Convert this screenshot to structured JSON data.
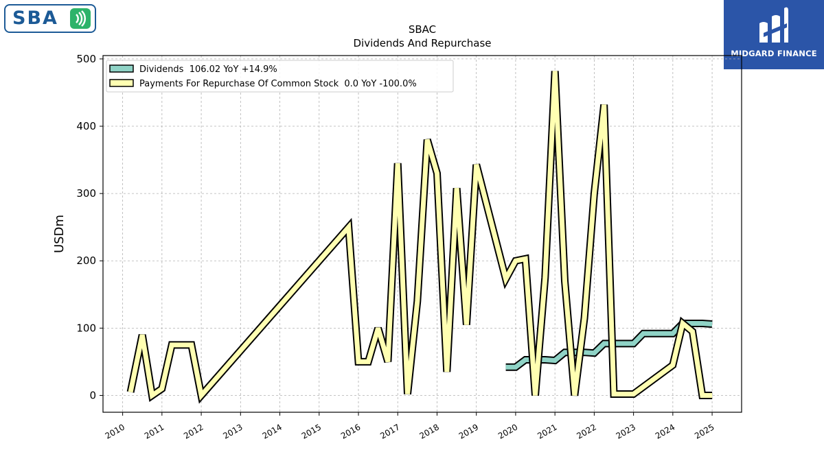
{
  "logos": {
    "left_text": "SBA",
    "right_text": "MIDGARD FINANCE"
  },
  "colors": {
    "dividends": "#8fd3c6",
    "repurchase": "#ffffb2",
    "outline": "#000000",
    "grid": "#b0b0b0",
    "midgard_bg": "#2b55a8",
    "sba_blue": "#1c5a96",
    "sba_green": "#2db36a"
  },
  "chart_data": {
    "type": "line",
    "title": "SBAC",
    "subtitle": "Dividends And Repurchase",
    "xlabel": "",
    "ylabel": "USDm",
    "xlim": [
      2009.5,
      2025.75
    ],
    "ylim": [
      -25,
      505
    ],
    "x_ticks": [
      "2010",
      "2011",
      "2012",
      "2013",
      "2014",
      "2015",
      "2016",
      "2017",
      "2018",
      "2019",
      "2020",
      "2021",
      "2022",
      "2023",
      "2024",
      "2025"
    ],
    "y_ticks": [
      "0",
      "100",
      "200",
      "300",
      "400",
      "500"
    ],
    "grid": true,
    "legend_position": "top-left",
    "series": [
      {
        "name": "Dividends",
        "legend": "Dividends  106.02 YoY +14.9%",
        "color": "#8fd3c6",
        "points": [
          [
            2019.75,
            42
          ],
          [
            2020.0,
            42
          ],
          [
            2020.25,
            53
          ],
          [
            2020.5,
            53
          ],
          [
            2020.75,
            53
          ],
          [
            2021.0,
            52
          ],
          [
            2021.25,
            64
          ],
          [
            2021.5,
            64
          ],
          [
            2021.75,
            64
          ],
          [
            2022.0,
            63
          ],
          [
            2022.25,
            77
          ],
          [
            2022.5,
            77
          ],
          [
            2022.75,
            77
          ],
          [
            2023.0,
            77
          ],
          [
            2023.25,
            92
          ],
          [
            2023.5,
            92
          ],
          [
            2023.75,
            92
          ],
          [
            2024.0,
            92
          ],
          [
            2024.25,
            107
          ],
          [
            2024.5,
            107
          ],
          [
            2024.75,
            107
          ],
          [
            2025.0,
            106
          ]
        ]
      },
      {
        "name": "Payments For Repurchase Of Common Stock",
        "legend": "Payments For Repurchase Of Common Stock  0.0 YoY -100.0%",
        "color": "#ffffb2",
        "points": [
          [
            2010.2,
            5
          ],
          [
            2010.5,
            90
          ],
          [
            2010.75,
            0
          ],
          [
            2011.0,
            10
          ],
          [
            2011.25,
            75
          ],
          [
            2011.5,
            75
          ],
          [
            2011.75,
            75
          ],
          [
            2012.0,
            0
          ],
          [
            2015.75,
            250
          ],
          [
            2016.0,
            50
          ],
          [
            2016.25,
            50
          ],
          [
            2016.5,
            100
          ],
          [
            2016.75,
            50
          ],
          [
            2017.0,
            345
          ],
          [
            2017.25,
            2
          ],
          [
            2017.5,
            140
          ],
          [
            2017.75,
            380
          ],
          [
            2018.0,
            330
          ],
          [
            2018.25,
            35
          ],
          [
            2018.5,
            308
          ],
          [
            2018.75,
            105
          ],
          [
            2019.0,
            343
          ],
          [
            2019.75,
            173
          ],
          [
            2020.0,
            200
          ],
          [
            2020.25,
            203
          ],
          [
            2020.5,
            0
          ],
          [
            2020.75,
            175
          ],
          [
            2021.0,
            482
          ],
          [
            2021.25,
            170
          ],
          [
            2021.5,
            0
          ],
          [
            2021.75,
            115
          ],
          [
            2022.0,
            300
          ],
          [
            2022.25,
            432
          ],
          [
            2022.5,
            2
          ],
          [
            2022.75,
            2
          ],
          [
            2023.0,
            2
          ],
          [
            2024.0,
            45
          ],
          [
            2024.25,
            107
          ],
          [
            2024.5,
            95
          ],
          [
            2024.75,
            0
          ],
          [
            2025.0,
            0
          ]
        ]
      }
    ]
  }
}
